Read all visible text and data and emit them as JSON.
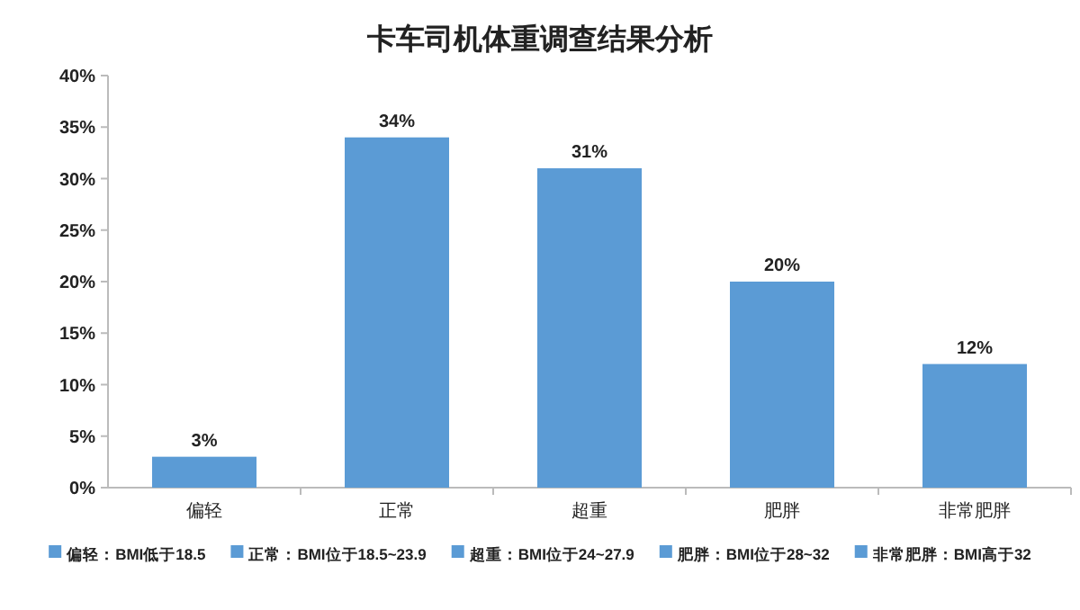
{
  "chart_data": {
    "type": "bar",
    "title": "卡车司机体重调查结果分析",
    "categories": [
      "偏轻",
      "正常",
      "超重",
      "肥胖",
      "非常肥胖"
    ],
    "series": [
      {
        "name": "偏轻：BMI低于18.5",
        "color": "#5b9bd5",
        "values": [
          3,
          null,
          null,
          null,
          null
        ],
        "value_labels": [
          "3%",
          null,
          null,
          null,
          null
        ]
      },
      {
        "name": "正常：BMI位于18.5~23.9",
        "color": "#5b9bd5",
        "values": [
          null,
          34,
          null,
          null,
          null
        ],
        "value_labels": [
          null,
          "34%",
          null,
          null,
          null
        ]
      },
      {
        "name": "超重：BMI位于24~27.9",
        "color": "#5b9bd5",
        "values": [
          null,
          null,
          31,
          null,
          null
        ],
        "value_labels": [
          null,
          null,
          "31%",
          null,
          null
        ]
      },
      {
        "name": "肥胖：BMI位于28~32",
        "color": "#5b9bd5",
        "values": [
          null,
          null,
          null,
          20,
          null
        ],
        "value_labels": [
          null,
          null,
          null,
          "20%",
          null
        ]
      },
      {
        "name": "非常肥胖：BMI高于32",
        "color": "#5b9bd5",
        "values": [
          null,
          null,
          null,
          null,
          12
        ],
        "value_labels": [
          null,
          null,
          null,
          null,
          "12%"
        ]
      }
    ],
    "ylim": [
      0,
      40
    ],
    "yticks": [
      {
        "value": 0,
        "label": "0%"
      },
      {
        "value": 5,
        "label": "5%"
      },
      {
        "value": 10,
        "label": "10%"
      },
      {
        "value": 15,
        "label": "15%"
      },
      {
        "value": 20,
        "label": "20%"
      },
      {
        "value": 25,
        "label": "25%"
      },
      {
        "value": 30,
        "label": "30%"
      },
      {
        "value": 35,
        "label": "35%"
      },
      {
        "value": 40,
        "label": "40%"
      }
    ],
    "grid": false,
    "legend": "bottom"
  }
}
